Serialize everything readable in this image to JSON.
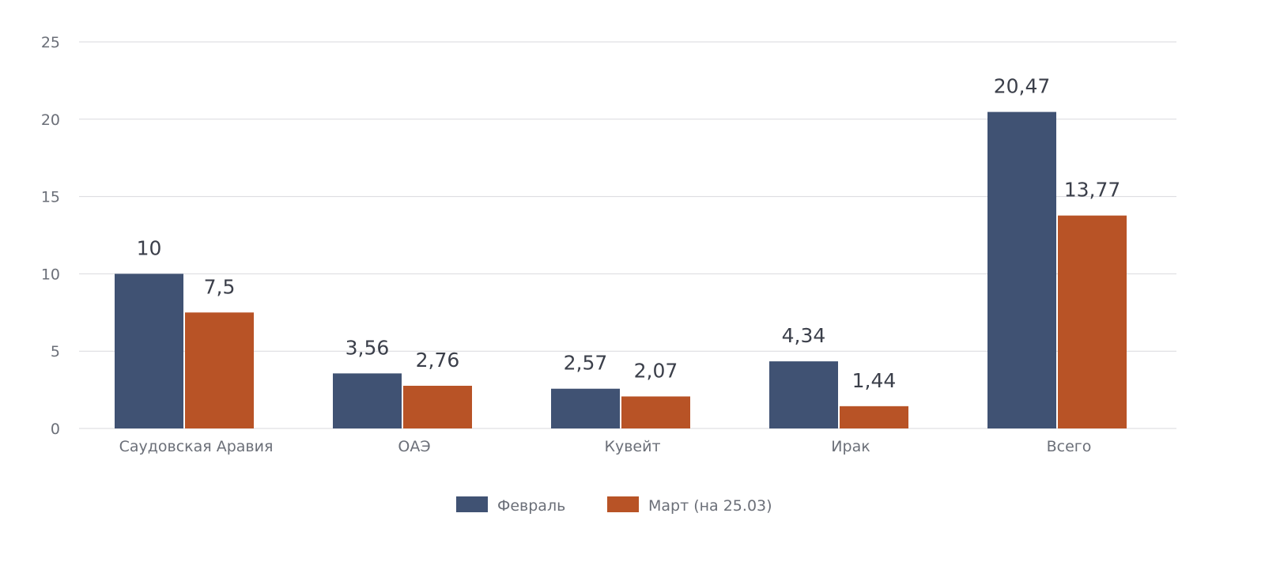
{
  "chart_data": {
    "type": "bar",
    "title": "",
    "xlabel": "",
    "ylabel": "",
    "ylim": [
      0,
      25
    ],
    "yticks": [
      "0",
      "5",
      "10",
      "15",
      "20",
      "25"
    ],
    "grid": true,
    "legend_position": "bottom-center",
    "categories": [
      "Саудовская Аравия",
      "ОАЭ",
      "Кувейт",
      "Ирак",
      "Всего"
    ],
    "series": [
      {
        "name": "Февраль",
        "color": "#405273",
        "values": [
          10,
          3.56,
          2.57,
          4.34,
          20.47
        ],
        "labels": [
          "10",
          "3,56",
          "2,57",
          "4,34",
          "20,47"
        ]
      },
      {
        "name": "Март (на 25.03)",
        "color": "#B85326",
        "values": [
          7.5,
          2.76,
          2.07,
          1.44,
          13.77
        ],
        "labels": [
          "7,5",
          "2,76",
          "2,07",
          "1,44",
          "13,77"
        ]
      }
    ]
  }
}
